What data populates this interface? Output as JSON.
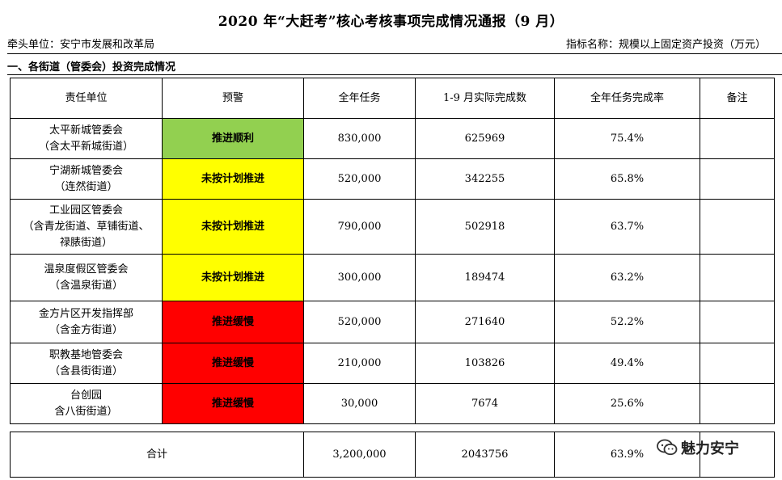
{
  "title": "2020 年“大赶考”核心考核事项完成情况通报（9 月）",
  "lead_unit": "牵头单位：安宁市发展和改革局",
  "indicator": "指标名称：规模以上固定资产投资（万元）",
  "section_title": "一、各街道（管委会）投资完成情况",
  "headers": [
    "责任单位",
    "预警",
    "全年任务",
    "1-9 月实际完成数",
    "全年任务完成率",
    "备注"
  ],
  "colors": {
    "green": "#92d050",
    "yellow": "#ffff00",
    "red": "#ff0000"
  },
  "rows": [
    {
      "unit_l1": "太平新城管委会",
      "unit_l2": "（含太平新城街道）",
      "unit_l3": "",
      "warning": "推进顺利",
      "level": "green",
      "task": "830,000",
      "actual": "625969",
      "rate": "75.4%",
      "note": ""
    },
    {
      "unit_l1": "宁湖新城管委会",
      "unit_l2": "（连然街道）",
      "unit_l3": "",
      "warning": "未按计划推进",
      "level": "yellow",
      "task": "520,000",
      "actual": "342255",
      "rate": "65.8%",
      "note": ""
    },
    {
      "unit_l1": "工业园区管委会",
      "unit_l2": "（含青龙街道、草铺街道、",
      "unit_l3": "禄脿街道）",
      "warning": "未按计划推进",
      "level": "yellow",
      "task": "790,000",
      "actual": "502918",
      "rate": "63.7%",
      "note": ""
    },
    {
      "unit_l1": "温泉度假区管委会",
      "unit_l2": "（含温泉街道）",
      "unit_l3": "",
      "warning": "未按计划推进",
      "level": "yellow",
      "task": "300,000",
      "actual": "189474",
      "rate": "63.2%",
      "note": ""
    },
    {
      "unit_l1": "金方片区开发指挥部",
      "unit_l2": "（含金方街道）",
      "unit_l3": "",
      "warning": "推进缓慢",
      "level": "red",
      "task": "520,000",
      "actual": "271640",
      "rate": "52.2%",
      "note": ""
    },
    {
      "unit_l1": "职教基地管委会",
      "unit_l2": "（含县街街道）",
      "unit_l3": "",
      "warning": "推进缓慢",
      "level": "red",
      "task": "210,000",
      "actual": "103826",
      "rate": "49.4%",
      "note": ""
    },
    {
      "unit_l1": "台创园",
      "unit_l2": "含八街街道）",
      "unit_l3": "",
      "warning": "推进缓慢",
      "level": "red",
      "task": "30,000",
      "actual": "7674",
      "rate": "25.6%",
      "note": ""
    }
  ],
  "total": {
    "label": "合计",
    "task": "3,200,000",
    "actual": "2043756",
    "rate": "63.9%"
  },
  "watermark": {
    "text": "魅力安宁",
    "icon": "wechat-icon"
  }
}
